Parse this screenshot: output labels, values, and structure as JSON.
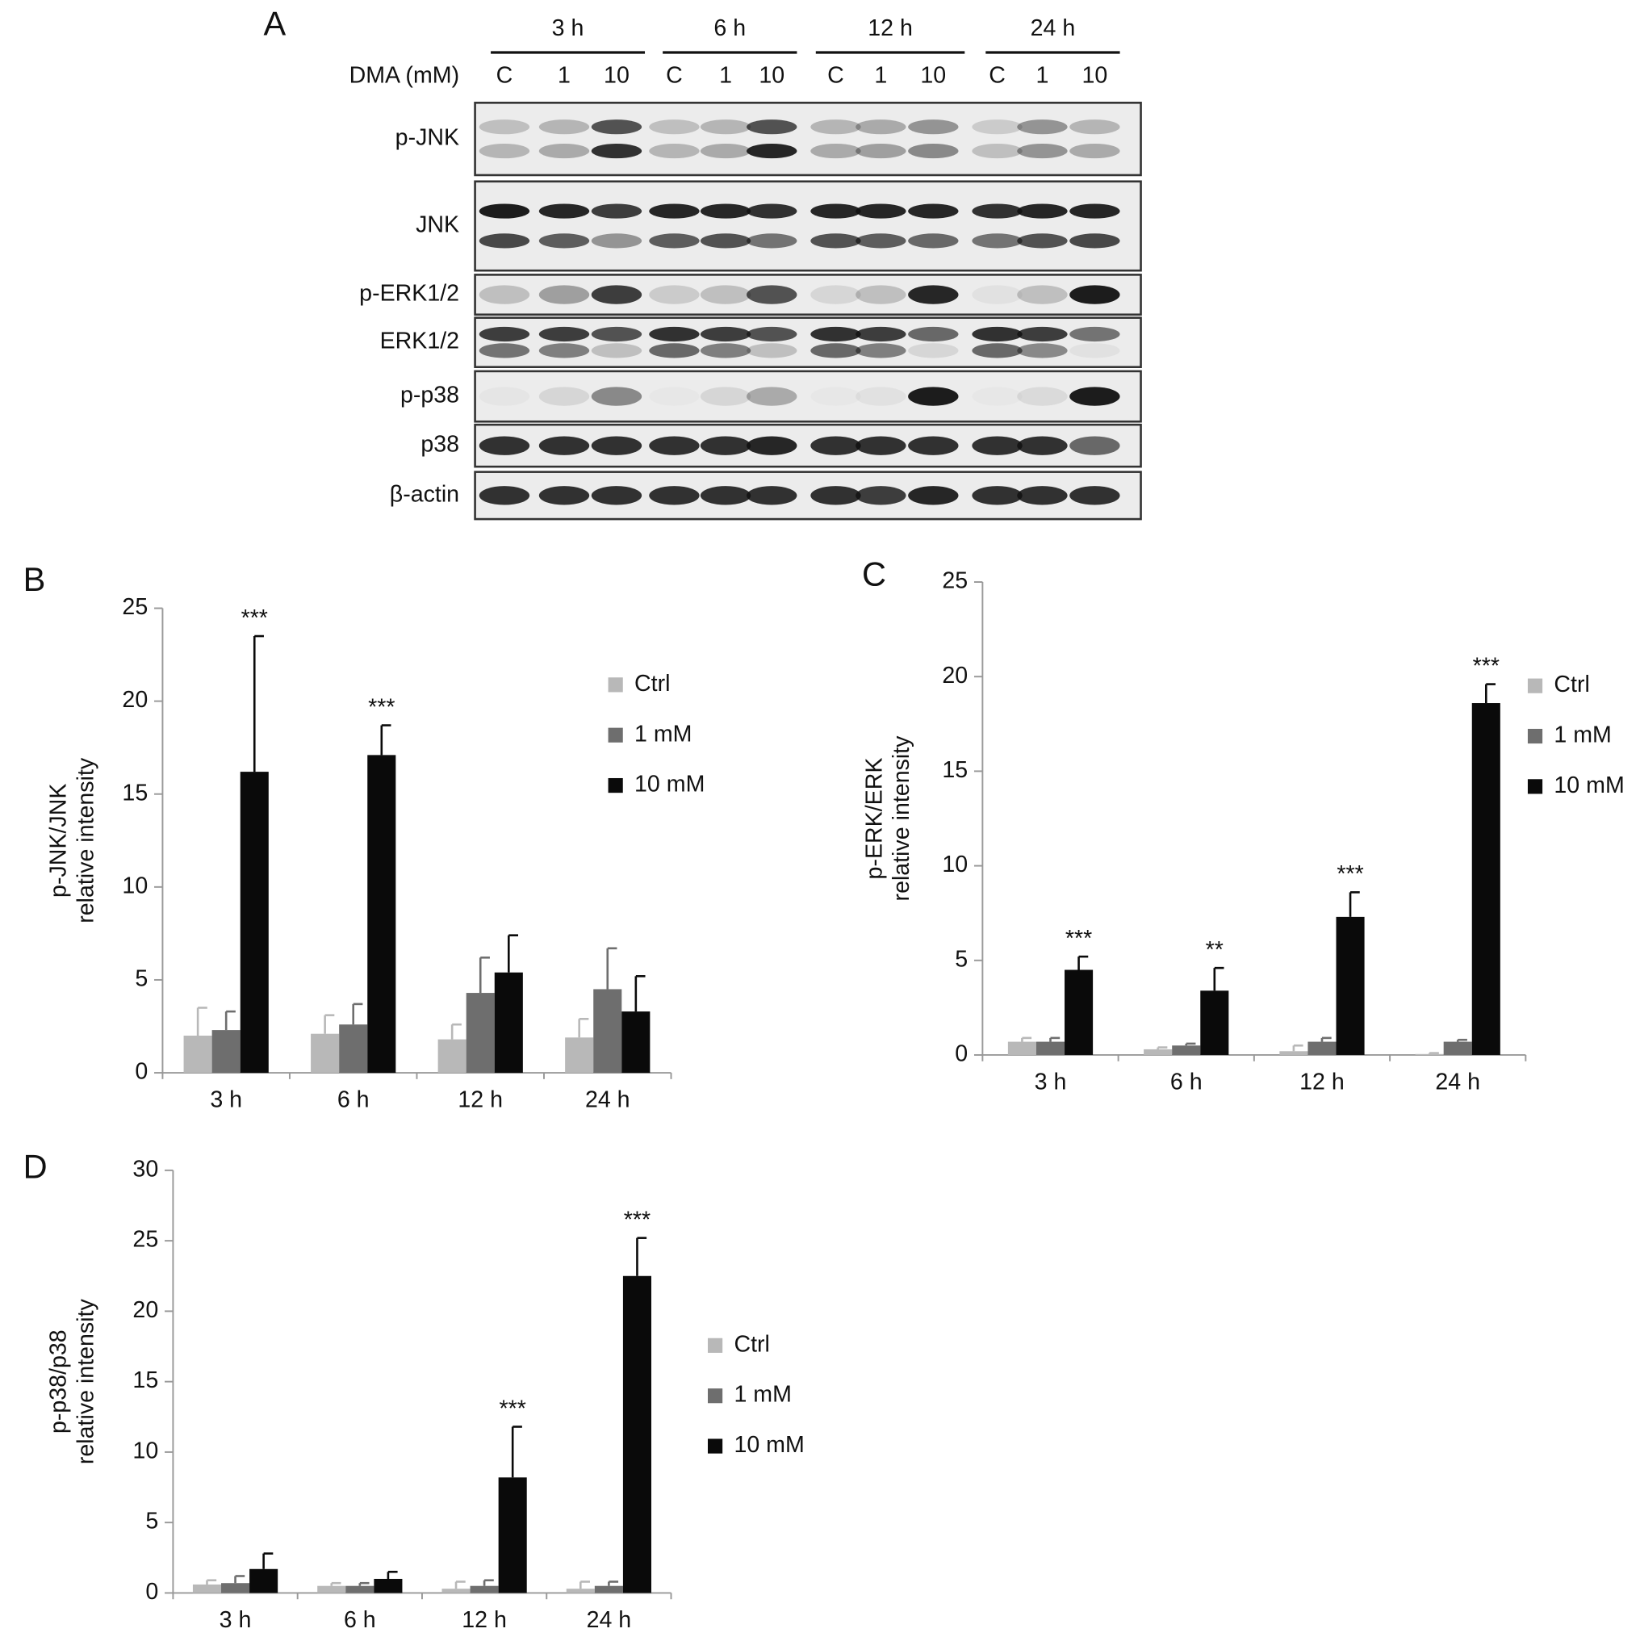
{
  "blot": {
    "panel": "A",
    "treatment": "DMA (mM)",
    "times": [
      "3 h",
      "6 h",
      "12 h",
      "24 h"
    ],
    "lanes": [
      "C",
      "1",
      "10",
      "C",
      "1",
      "10",
      "C",
      "1",
      "10",
      "C",
      "1",
      "10"
    ],
    "rows": [
      "p-JNK",
      "JNK",
      "p-ERK1/2",
      "ERK1/2",
      "p-p38",
      "p38",
      "β-actin"
    ]
  },
  "chart_data": [
    {
      "type": "bar",
      "panel": "B",
      "ylabel": [
        "p-JNK/JNK",
        "relative intensity"
      ],
      "categories": [
        "3 h",
        "6 h",
        "12 h",
        "24 h"
      ],
      "series": [
        {
          "name": "Ctrl",
          "color": "#b8b8b8",
          "values": [
            2.0,
            2.1,
            1.8,
            1.9
          ],
          "errors": [
            1.5,
            1.0,
            0.8,
            1.0
          ]
        },
        {
          "name": "1 mM",
          "color": "#6e6e6e",
          "values": [
            2.3,
            2.6,
            4.3,
            4.5
          ],
          "errors": [
            1.0,
            1.1,
            1.9,
            2.2
          ]
        },
        {
          "name": "10 mM",
          "color": "#0a0a0a",
          "values": [
            16.2,
            17.1,
            5.4,
            3.3
          ],
          "errors": [
            7.3,
            1.6,
            2.0,
            1.9
          ]
        }
      ],
      "significance": [
        "***",
        "***",
        null,
        null
      ],
      "ylim": [
        0,
        25
      ],
      "yticks": [
        0,
        5,
        10,
        15,
        20,
        25
      ],
      "legend": "right"
    },
    {
      "type": "bar",
      "panel": "C",
      "ylabel": [
        "p-ERK/ERK",
        "relative intensity"
      ],
      "categories": [
        "3 h",
        "6 h",
        "12 h",
        "24 h"
      ],
      "series": [
        {
          "name": "Ctrl",
          "color": "#b8b8b8",
          "values": [
            0.7,
            0.3,
            0.2,
            0.05
          ],
          "errors": [
            0.2,
            0.1,
            0.3,
            0.05
          ]
        },
        {
          "name": "1 mM",
          "color": "#6e6e6e",
          "values": [
            0.7,
            0.5,
            0.7,
            0.7
          ],
          "errors": [
            0.2,
            0.1,
            0.2,
            0.1
          ]
        },
        {
          "name": "10 mM",
          "color": "#0a0a0a",
          "values": [
            4.5,
            3.4,
            7.3,
            18.6
          ],
          "errors": [
            0.7,
            1.2,
            1.3,
            1.0
          ]
        }
      ],
      "significance": [
        "***",
        "**",
        "***",
        "***"
      ],
      "ylim": [
        0,
        25
      ],
      "yticks": [
        0,
        5,
        10,
        15,
        20,
        25
      ],
      "legend": "right"
    },
    {
      "type": "bar",
      "panel": "D",
      "ylabel": [
        "p-p38/p38",
        "relative intensity"
      ],
      "categories": [
        "3 h",
        "6 h",
        "12 h",
        "24 h"
      ],
      "series": [
        {
          "name": "Ctrl",
          "color": "#b8b8b8",
          "values": [
            0.6,
            0.5,
            0.3,
            0.3
          ],
          "errors": [
            0.3,
            0.2,
            0.5,
            0.5
          ]
        },
        {
          "name": "1 mM",
          "color": "#6e6e6e",
          "values": [
            0.7,
            0.5,
            0.5,
            0.5
          ],
          "errors": [
            0.5,
            0.2,
            0.4,
            0.3
          ]
        },
        {
          "name": "10 mM",
          "color": "#0a0a0a",
          "values": [
            1.7,
            1.0,
            8.2,
            22.5
          ],
          "errors": [
            1.1,
            0.5,
            3.6,
            2.7
          ]
        }
      ],
      "significance": [
        null,
        null,
        "***",
        "***"
      ],
      "ylim": [
        0,
        30
      ],
      "yticks": [
        0,
        5,
        10,
        15,
        20,
        25,
        30
      ],
      "legend": "right"
    }
  ]
}
